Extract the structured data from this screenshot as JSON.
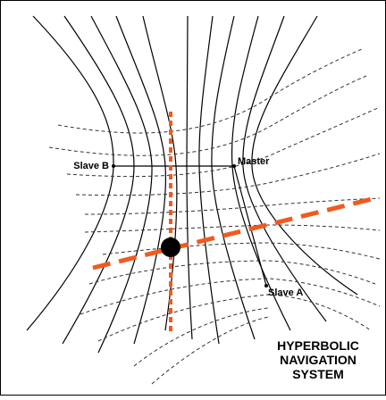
{
  "diagram": {
    "stations": {
      "master": "Master",
      "slave_a": "Slave A",
      "slave_b": "Slave B"
    },
    "title_lines": [
      "HYPERBOLIC",
      "NAVIGATION",
      "SYSTEM"
    ]
  },
  "colors": {
    "background": "#ffffff",
    "frame": "#000000",
    "solid_hyperbolas": "#000000",
    "dashed_hyperbolas": "#333333",
    "lines_of_position": "#f15a1f",
    "position_fix": "#000000"
  }
}
